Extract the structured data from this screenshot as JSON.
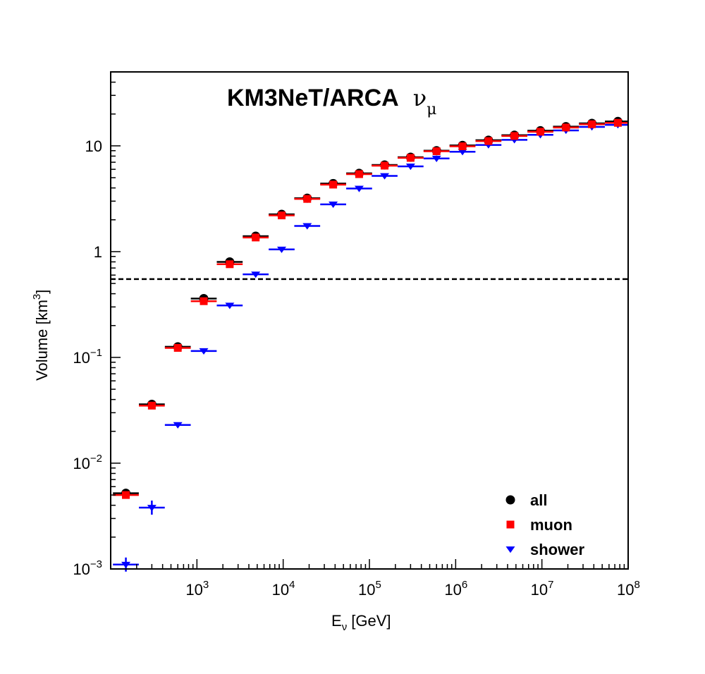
{
  "chart_data": {
    "type": "scatter",
    "title": "KM3NeT/ARCA",
    "title_symbol": "ν",
    "title_symbol_sub": "μ",
    "xlabel": {
      "base": "E",
      "sub": "ν",
      "rest": " [GeV]"
    },
    "ylabel": {
      "base": "Volume [km",
      "sup": "3",
      "rest": "]"
    },
    "x_scale": "log",
    "y_scale": "log",
    "xlim": [
      100,
      100000000
    ],
    "ylim": [
      0.001,
      50
    ],
    "x_ticks": [
      {
        "value": 1000,
        "base": "10",
        "exp": "3"
      },
      {
        "value": 10000,
        "base": "10",
        "exp": "4"
      },
      {
        "value": 100000,
        "base": "10",
        "exp": "5"
      },
      {
        "value": 1000000,
        "base": "10",
        "exp": "6"
      },
      {
        "value": 10000000,
        "base": "10",
        "exp": "7"
      },
      {
        "value": 100000000,
        "base": "10",
        "exp": "8"
      }
    ],
    "y_ticks": [
      {
        "value": 0.001,
        "base": "10",
        "exp": "−3"
      },
      {
        "value": 0.01,
        "base": "10",
        "exp": "−2"
      },
      {
        "value": 0.1,
        "base": "10",
        "exp": "−1"
      },
      {
        "value": 1,
        "base": "1",
        "exp": ""
      },
      {
        "value": 10,
        "base": "10",
        "exp": ""
      }
    ],
    "reference_line": {
      "y": 0.55,
      "style": "dashed"
    },
    "legend_position": "bottom-right",
    "bin_log_width": 0.3,
    "series": [
      {
        "name": "all",
        "marker": "circle",
        "color": "#000000",
        "bar_color": "#000000",
        "x": [
          150,
          300,
          600,
          1200,
          2400,
          4800,
          9600,
          19000,
          38000,
          76000,
          150000,
          300000,
          600000,
          1200000,
          2400000,
          4800000,
          9600000,
          19000000,
          38000000,
          76000000
        ],
        "y": [
          0.0052,
          0.036,
          0.126,
          0.36,
          0.8,
          1.4,
          2.25,
          3.2,
          4.4,
          5.5,
          6.6,
          7.8,
          9.0,
          10.1,
          11.3,
          12.6,
          13.9,
          15.2,
          16.3,
          17.0
        ]
      },
      {
        "name": "muon",
        "marker": "square",
        "color": "#ff0000",
        "bar_color": "#ff0000",
        "x": [
          150,
          300,
          600,
          1200,
          2400,
          4800,
          9600,
          19000,
          38000,
          76000,
          150000,
          300000,
          600000,
          1200000,
          2400000,
          4800000,
          9600000,
          19000000,
          38000000,
          76000000
        ],
        "y": [
          0.005,
          0.035,
          0.123,
          0.34,
          0.76,
          1.36,
          2.2,
          3.15,
          4.3,
          5.4,
          6.5,
          7.7,
          8.9,
          9.9,
          11.1,
          12.4,
          13.6,
          14.9,
          16.0,
          16.5
        ]
      },
      {
        "name": "shower",
        "marker": "triangle-down",
        "color": "#0000ff",
        "bar_color": "#0000ff",
        "x": [
          150,
          300,
          600,
          1200,
          2400,
          4800,
          9600,
          19000,
          38000,
          76000,
          150000,
          300000,
          600000,
          1200000,
          2400000,
          4800000,
          9600000,
          19000000,
          38000000,
          76000000
        ],
        "y": [
          0.0011,
          0.0038,
          0.023,
          0.115,
          0.31,
          0.61,
          1.05,
          1.75,
          2.8,
          3.95,
          5.2,
          6.4,
          7.6,
          8.8,
          10.2,
          11.4,
          12.7,
          14.0,
          15.1,
          15.8
        ]
      }
    ]
  }
}
